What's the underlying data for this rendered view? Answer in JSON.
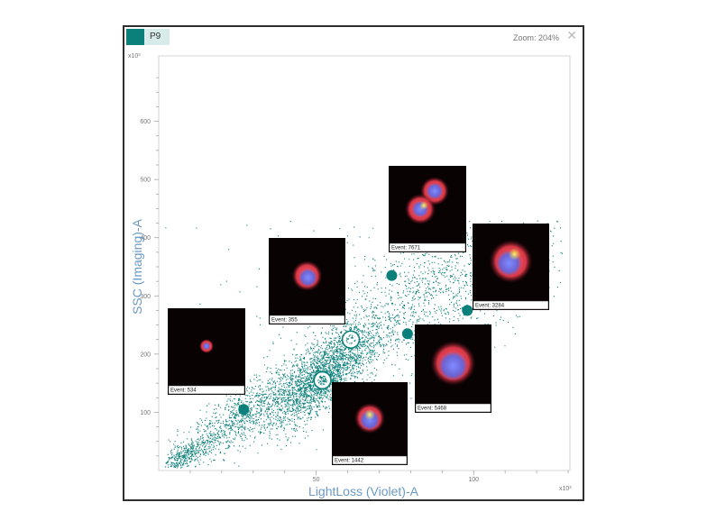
{
  "plot": {
    "name": "P9",
    "zoom_label": "Zoom: 204%",
    "close_glyph": "✕"
  },
  "chart_data": {
    "type": "scatter",
    "xlabel": "LightLoss (Violet)-A",
    "ylabel": "SSC (Imaging)-A",
    "x_exponent": "x10³",
    "y_exponent": "x10³",
    "xlim": [
      0,
      130
    ],
    "ylim": [
      0,
      700
    ],
    "x_ticks": [
      50,
      100
    ],
    "y_ticks": [
      100,
      200,
      300,
      400,
      500,
      600
    ],
    "grid": false,
    "dot_color": "#0b7f7a",
    "selected_events": [
      {
        "event": "Event: 534",
        "x": 27,
        "y": 105,
        "selected": false
      },
      {
        "event": "Event: 1442",
        "x": 52,
        "y": 155,
        "selected": true
      },
      {
        "event": "Event: 355",
        "x": 61,
        "y": 225,
        "selected": true
      },
      {
        "event": "Event: 7671",
        "x": 74,
        "y": 335,
        "selected": false
      },
      {
        "event": "Event: 5468",
        "x": 79,
        "y": 235,
        "selected": false
      },
      {
        "event": "Event: 3284",
        "x": 98,
        "y": 275,
        "selected": false
      }
    ]
  }
}
